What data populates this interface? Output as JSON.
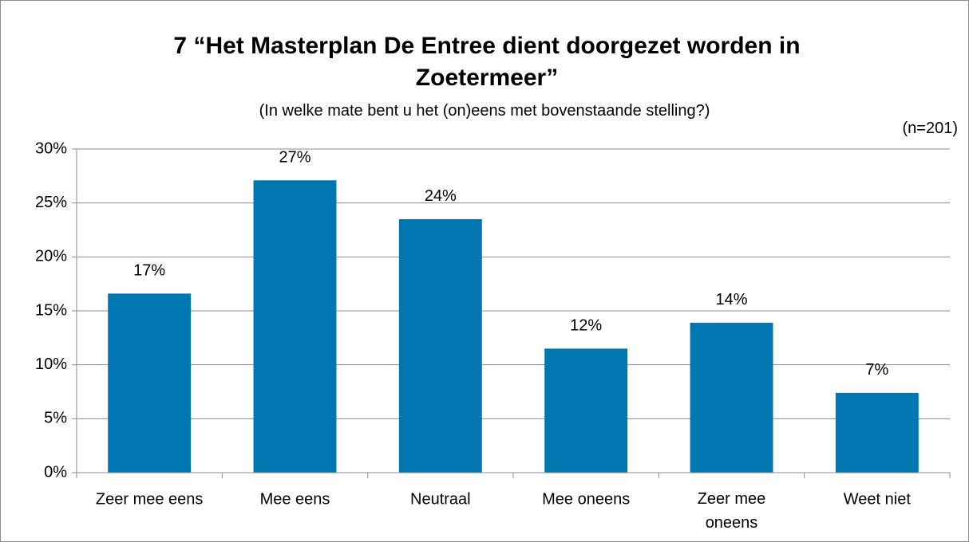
{
  "chart_data": {
    "type": "bar",
    "title": "7 “Het Masterplan De Entree dient doorgezet worden in Zoetermeer”",
    "subtitle": "(In welke mate bent u het (on)eens met bovenstaande stelling?)",
    "annotation": "(n=201)",
    "categories": [
      "Zeer mee eens",
      "Mee eens",
      "Neutraal",
      "Mee oneens",
      "Zeer mee oneens",
      "Weet niet"
    ],
    "values": [
      16.6,
      27.1,
      23.5,
      11.5,
      13.9,
      7.4
    ],
    "value_labels": [
      "17%",
      "27%",
      "24%",
      "12%",
      "14%",
      "7%"
    ],
    "color": "#0077b0",
    "ylim": [
      0,
      30
    ],
    "yticks": [
      {
        "value": 0,
        "label": "0%"
      },
      {
        "value": 5,
        "label": "5%"
      },
      {
        "value": 10,
        "label": "10%"
      },
      {
        "value": 15,
        "label": "15%"
      },
      {
        "value": 20,
        "label": "20%"
      },
      {
        "value": 25,
        "label": "25%"
      },
      {
        "value": 30,
        "label": "30%"
      }
    ],
    "grid": true
  }
}
